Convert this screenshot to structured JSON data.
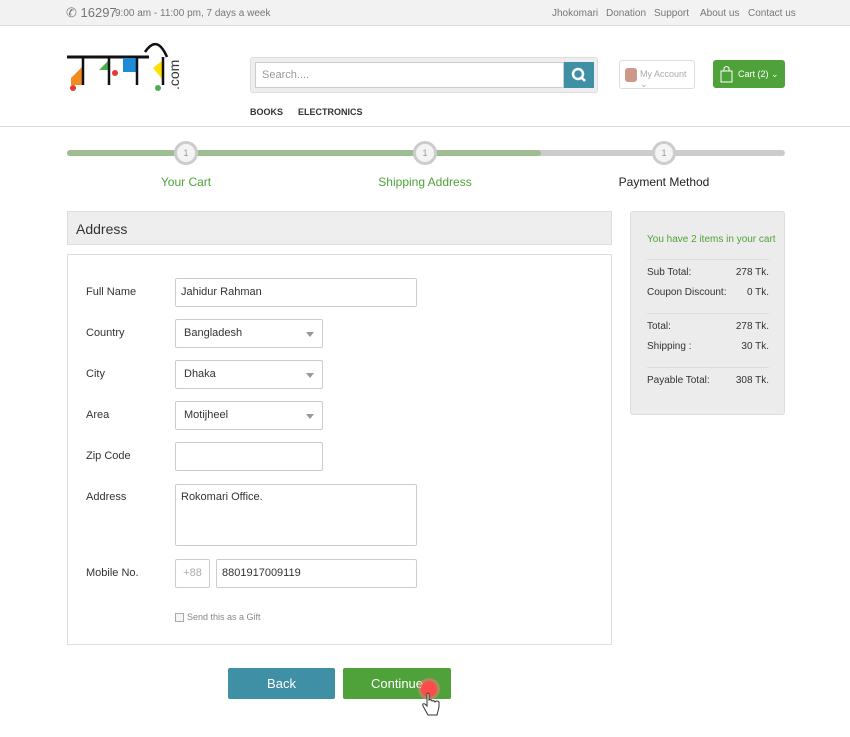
{
  "topbar": {
    "phone": "16297",
    "hours": "9:00 am - 11:00 pm, 7 days a week",
    "links": [
      "Jhokomari",
      "Donation",
      "Support",
      "About us",
      "Contact us"
    ]
  },
  "header": {
    "logo": "রকমারি.com",
    "search_placeholder": "Search....",
    "account_label": "My Account",
    "cart_label": "Cart (2)"
  },
  "nav": [
    "BOOKS",
    "ELECTRONICS"
  ],
  "steps": [
    {
      "num": "1",
      "label": "Your Cart"
    },
    {
      "num": "1",
      "label": "Shipping Address"
    },
    {
      "num": "1",
      "label": "Payment Method"
    }
  ],
  "progress_percent": 66,
  "colors": {
    "green": "#4fa23a",
    "teal": "#3f8fa5",
    "step_active": "#4fa23a"
  },
  "form": {
    "title": "Address",
    "full_name_label": "Full Name",
    "full_name": "Jahidur Rahman",
    "country_label": "Country",
    "country": "Bangladesh",
    "city_label": "City",
    "city": "Dhaka",
    "area_label": "Area",
    "area": "Motijheel",
    "zip_label": "Zip Code",
    "zip": "",
    "address_label": "Address",
    "address": "Rokomari Office.",
    "mobile_label": "Mobile No.",
    "mobile_prefix": "+88",
    "mobile": "8801917009119",
    "gift_label": "Send this as a Gift",
    "gift_checked": false
  },
  "summary": {
    "heading": "You have 2 items in your cart",
    "rows": [
      {
        "label": "Sub Total:",
        "value": "278 Tk."
      },
      {
        "label": "Coupon Discount:",
        "value": "0 Tk."
      },
      {
        "label": "Total:",
        "value": "278 Tk."
      },
      {
        "label": "Shipping :",
        "value": "30 Tk."
      },
      {
        "label": "Payable Total:",
        "value": "308 Tk."
      }
    ]
  },
  "buttons": {
    "back": "Back",
    "continue": "Continue"
  }
}
